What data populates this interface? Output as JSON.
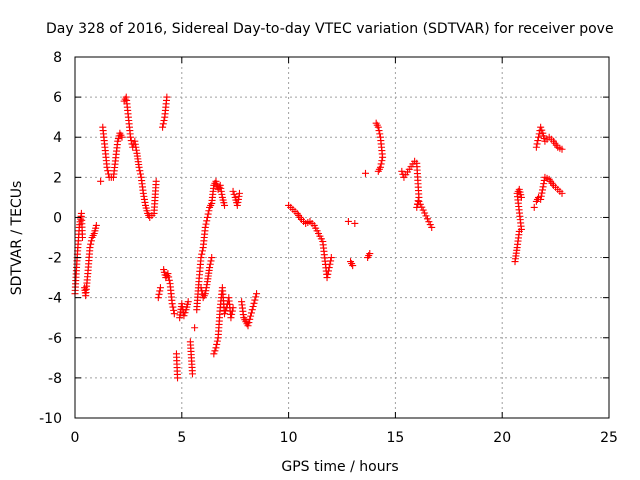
{
  "chart_data": {
    "type": "scatter",
    "title": "Day 328 of 2016, Sidereal Day-to-day VTEC variation (SDTVAR) for receiver pove",
    "xlabel": "GPS time / hours",
    "ylabel": "SDTVAR / TECUs",
    "xlim": [
      0,
      25
    ],
    "ylim": [
      -10,
      8
    ],
    "x_ticks": [
      0,
      5,
      10,
      15,
      20,
      25
    ],
    "y_ticks": [
      -10,
      -8,
      -6,
      -4,
      -2,
      0,
      2,
      4,
      6,
      8
    ],
    "x_tick_labels": [
      "0",
      "5",
      "10",
      "15",
      "20",
      "25"
    ],
    "y_tick_labels": [
      "-10",
      "-8",
      "-6",
      "-4",
      "-2",
      "0",
      "2",
      "4",
      "6",
      "8"
    ],
    "grid": true,
    "marker": "+",
    "color": "#ff0000",
    "series": [
      {
        "name": "SDTVAR",
        "segments": [
          [
            [
              0.0,
              -3.8
            ],
            [
              0.1,
              -2.0
            ],
            [
              0.2,
              -0.5
            ],
            [
              0.3,
              0.2
            ],
            [
              0.35,
              -1.0
            ],
            [
              0.45,
              -3.5
            ],
            [
              0.5,
              -3.9
            ],
            [
              0.6,
              -2.8
            ],
            [
              0.7,
              -1.5
            ],
            [
              0.8,
              -1.0
            ],
            [
              0.9,
              -0.8
            ],
            [
              1.0,
              -0.4
            ]
          ],
          [
            [
              1.2,
              1.8
            ],
            [
              1.3,
              4.5
            ],
            [
              1.4,
              3.5
            ],
            [
              1.5,
              2.5
            ],
            [
              1.6,
              2.0
            ],
            [
              1.8,
              2.0
            ],
            [
              2.0,
              3.8
            ],
            [
              2.1,
              4.2
            ],
            [
              2.2,
              4.0
            ]
          ],
          [
            [
              2.3,
              5.8
            ],
            [
              2.4,
              6.0
            ],
            [
              2.5,
              5.0
            ],
            [
              2.6,
              4.0
            ],
            [
              2.7,
              3.5
            ],
            [
              2.8,
              3.8
            ],
            [
              2.9,
              3.2
            ],
            [
              3.0,
              2.5
            ],
            [
              3.1,
              2.0
            ],
            [
              3.2,
              1.2
            ],
            [
              3.3,
              0.6
            ],
            [
              3.4,
              0.2
            ],
            [
              3.5,
              0.0
            ],
            [
              3.6,
              0.1
            ],
            [
              3.7,
              0.2
            ],
            [
              3.8,
              1.8
            ]
          ],
          [
            [
              3.9,
              -4.0
            ],
            [
              4.0,
              -3.5
            ],
            [
              4.1,
              4.5
            ],
            [
              4.2,
              5.0
            ],
            [
              4.3,
              6.0
            ]
          ],
          [
            [
              4.15,
              -2.6
            ],
            [
              4.25,
              -3.0
            ],
            [
              4.35,
              -2.8
            ],
            [
              4.45,
              -3.3
            ],
            [
              4.55,
              -4.3
            ],
            [
              4.65,
              -4.8
            ],
            [
              4.75,
              -6.8
            ],
            [
              4.8,
              -8.0
            ],
            [
              4.9,
              -5.0
            ],
            [
              5.0,
              -4.3
            ],
            [
              5.1,
              -4.9
            ],
            [
              5.2,
              -4.6
            ],
            [
              5.3,
              -4.2
            ],
            [
              5.4,
              -6.2
            ],
            [
              5.5,
              -7.8
            ],
            [
              5.6,
              -5.5
            ]
          ],
          [
            [
              5.7,
              -4.6
            ],
            [
              5.8,
              -3.2
            ],
            [
              5.9,
              -2.0
            ],
            [
              6.0,
              -1.5
            ],
            [
              6.1,
              -0.5
            ],
            [
              6.2,
              0.0
            ],
            [
              6.3,
              0.5
            ],
            [
              6.4,
              0.7
            ],
            [
              6.5,
              1.6
            ],
            [
              6.6,
              1.8
            ],
            [
              6.7,
              1.4
            ],
            [
              6.8,
              1.6
            ],
            [
              6.9,
              1.0
            ],
            [
              7.0,
              0.6
            ]
          ],
          [
            [
              5.9,
              -3.5
            ],
            [
              6.0,
              -4.0
            ],
            [
              6.1,
              -3.8
            ],
            [
              6.2,
              -3.2
            ],
            [
              6.3,
              -2.5
            ],
            [
              6.4,
              -2.0
            ],
            [
              6.5,
              -6.8
            ],
            [
              6.6,
              -6.5
            ],
            [
              6.7,
              -6.0
            ],
            [
              6.8,
              -4.5
            ],
            [
              6.9,
              -3.5
            ],
            [
              7.0,
              -4.8
            ],
            [
              7.1,
              -4.5
            ],
            [
              7.2,
              -4.0
            ],
            [
              7.3,
              -5.0
            ],
            [
              7.4,
              -4.5
            ]
          ],
          [
            [
              7.4,
              1.3
            ],
            [
              7.5,
              1.0
            ],
            [
              7.6,
              0.6
            ],
            [
              7.7,
              1.2
            ]
          ],
          [
            [
              7.8,
              -4.2
            ],
            [
              7.9,
              -5.0
            ],
            [
              8.0,
              -5.2
            ],
            [
              8.1,
              -5.4
            ],
            [
              8.5,
              -3.8
            ]
          ],
          [
            [
              10.0,
              0.6
            ],
            [
              10.2,
              0.4
            ],
            [
              10.4,
              0.2
            ],
            [
              10.6,
              -0.1
            ],
            [
              10.8,
              -0.3
            ],
            [
              11.0,
              -0.2
            ],
            [
              11.2,
              -0.4
            ],
            [
              11.4,
              -0.8
            ],
            [
              11.6,
              -1.2
            ],
            [
              11.8,
              -3.0
            ],
            [
              11.9,
              -2.5
            ],
            [
              12.0,
              -2.0
            ]
          ],
          [
            [
              12.8,
              -0.2
            ],
            [
              12.9,
              -2.2
            ],
            [
              13.0,
              -2.4
            ],
            [
              13.1,
              -0.3
            ],
            [
              13.6,
              2.2
            ],
            [
              13.7,
              -2.0
            ],
            [
              13.8,
              -1.8
            ]
          ],
          [
            [
              14.1,
              4.7
            ],
            [
              14.2,
              4.5
            ],
            [
              14.3,
              4.0
            ],
            [
              14.4,
              3.0
            ],
            [
              14.3,
              2.5
            ],
            [
              14.2,
              2.3
            ]
          ],
          [
            [
              15.3,
              2.3
            ],
            [
              15.4,
              2.0
            ],
            [
              15.9,
              2.8
            ],
            [
              16.0,
              2.7
            ],
            [
              16.1,
              1.0
            ],
            [
              16.0,
              0.5
            ],
            [
              16.1,
              0.8
            ],
            [
              16.7,
              -0.5
            ]
          ],
          [
            [
              20.6,
              -2.2
            ],
            [
              20.7,
              -1.5
            ],
            [
              20.8,
              -0.7
            ],
            [
              20.9,
              -0.6
            ],
            [
              20.7,
              1.2
            ],
            [
              20.8,
              1.4
            ],
            [
              20.9,
              1.0
            ]
          ],
          [
            [
              21.5,
              0.5
            ],
            [
              21.6,
              3.5
            ],
            [
              21.7,
              4.0
            ],
            [
              21.8,
              4.5
            ],
            [
              21.9,
              4.2
            ],
            [
              22.0,
              3.8
            ],
            [
              22.2,
              4.0
            ],
            [
              22.4,
              3.8
            ],
            [
              22.6,
              3.5
            ],
            [
              22.8,
              3.4
            ],
            [
              21.6,
              0.8
            ],
            [
              21.7,
              1.0
            ],
            [
              21.8,
              0.9
            ],
            [
              22.0,
              2.0
            ],
            [
              22.2,
              1.9
            ],
            [
              22.4,
              1.6
            ],
            [
              22.6,
              1.4
            ],
            [
              22.8,
              1.2
            ]
          ]
        ]
      }
    ]
  }
}
